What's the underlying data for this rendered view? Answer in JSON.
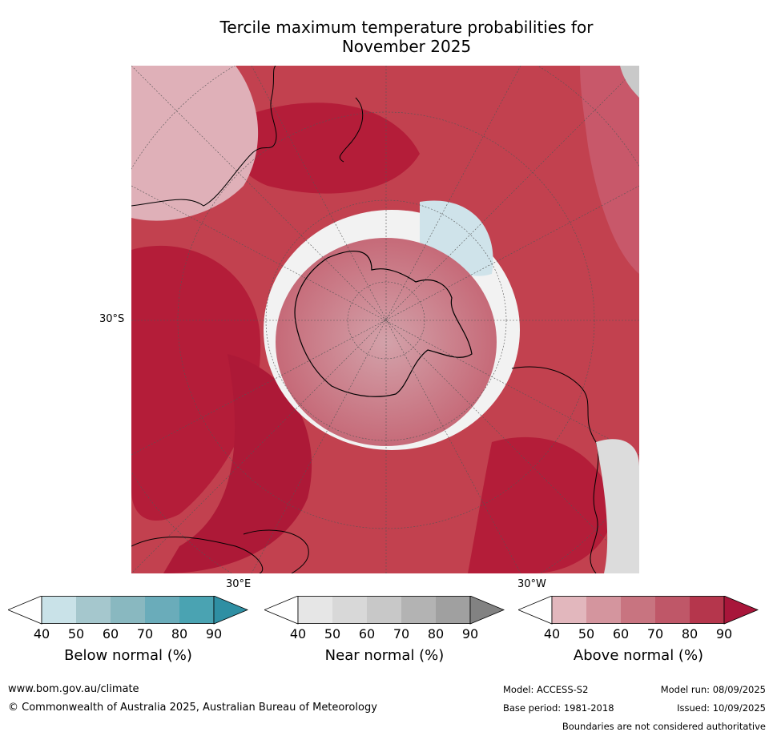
{
  "title_line1": "Tercile maximum temperature probabilities for",
  "title_line2": "November 2025",
  "map": {
    "lat_label": "30°S",
    "lon_label_left": "30°E",
    "lon_label_right": "30°W"
  },
  "colorbars": [
    {
      "label": "Below normal (%)",
      "ticks": [
        "40",
        "50",
        "60",
        "70",
        "80",
        "90"
      ],
      "colors": [
        "#ffffff",
        "#c9e2e8",
        "#a5c7cd",
        "#89b8c0",
        "#6aacba",
        "#4aa3b2",
        "#2f8fa3"
      ]
    },
    {
      "label": "Near normal (%)",
      "ticks": [
        "40",
        "50",
        "60",
        "70",
        "80",
        "90"
      ],
      "colors": [
        "#ffffff",
        "#e6e6e6",
        "#d8d8d8",
        "#c8c8c8",
        "#b3b3b3",
        "#a0a0a0",
        "#828282"
      ]
    },
    {
      "label": "Above normal (%)",
      "ticks": [
        "40",
        "50",
        "60",
        "70",
        "80",
        "90"
      ],
      "colors": [
        "#ffffff",
        "#e2b7bd",
        "#d4959e",
        "#c87480",
        "#bf5768",
        "#b5364c",
        "#a8163a"
      ]
    }
  ],
  "footer": {
    "website": "www.bom.gov.au/climate",
    "copyright": "© Commonwealth of Australia 2025, Australian Bureau of Meteorology",
    "model": "Model: ACCESS-S2",
    "model_run": "Model run: 08/09/2025",
    "base_period": "Base period: 1981-2018",
    "issued": "Issued: 10/09/2025",
    "disclaimer": "Boundaries are not considered authoritative"
  }
}
